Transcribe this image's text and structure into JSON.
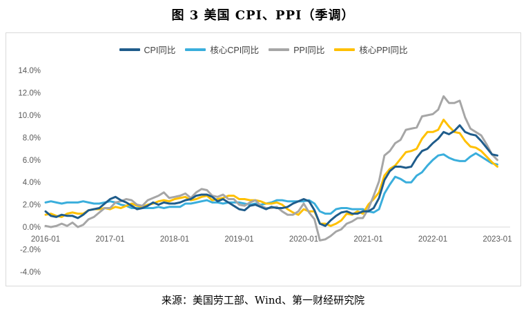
{
  "title": "图 3 美国 CPI、PPI（季调）",
  "source_note": "来源：美国劳工部、Wind、第一财经研究院",
  "colors": {
    "cpi": "#1F5C8B",
    "core_cpi": "#3AAEDC",
    "ppi": "#A6A6A6",
    "core_ppi": "#FFC000",
    "axis_line": "#D9D9D9",
    "tick_text": "#595959",
    "frame_border": "#D9D9D9"
  },
  "chart_data": {
    "type": "line",
    "title": "图 3 美国 CPI、PPI（季调）",
    "xlabel": "",
    "ylabel": "",
    "x_unit": "month",
    "x_range": [
      "2016-01",
      "2023-01"
    ],
    "x_tick_labels": [
      "2016-01",
      "2017-01",
      "2018-01",
      "2019-01",
      "2020-01",
      "2021-01",
      "2022-01",
      "2023-01"
    ],
    "y_ticks": [
      {
        "value": 14,
        "label": "14.0%"
      },
      {
        "value": 12,
        "label": "12.0%"
      },
      {
        "value": 10,
        "label": "10.0%"
      },
      {
        "value": 8,
        "label": "8.0%"
      },
      {
        "value": 6,
        "label": "6.0%"
      },
      {
        "value": 4,
        "label": "4.0%"
      },
      {
        "value": 2,
        "label": "2.0%"
      },
      {
        "value": 0,
        "label": "0.0%"
      },
      {
        "value": -2,
        "label": "-2.0%"
      },
      {
        "value": -4,
        "label": "-4.0%"
      }
    ],
    "ylim": [
      -4,
      14
    ],
    "grid": "zero-baseline-only",
    "legend_position": "top-center",
    "series": [
      {
        "name": "CPI同比",
        "color": "#1F5C8B",
        "z": 4,
        "values": [
          1.4,
          1.0,
          0.9,
          1.1,
          1.0,
          1.0,
          0.8,
          1.1,
          1.5,
          1.6,
          1.7,
          2.1,
          2.5,
          2.7,
          2.4,
          2.2,
          1.9,
          1.6,
          1.7,
          1.9,
          2.2,
          2.0,
          2.2,
          2.1,
          2.1,
          2.2,
          2.4,
          2.5,
          2.8,
          2.9,
          2.9,
          2.7,
          2.3,
          2.5,
          2.2,
          1.9,
          1.6,
          1.5,
          1.9,
          2.0,
          1.8,
          1.6,
          1.8,
          1.7,
          1.7,
          1.8,
          2.1,
          2.3,
          2.5,
          2.3,
          1.5,
          0.3,
          0.1,
          0.6,
          1.0,
          1.3,
          1.4,
          1.2,
          1.2,
          1.4,
          1.4,
          1.7,
          2.6,
          4.2,
          5.0,
          5.4,
          5.4,
          5.3,
          5.4,
          6.2,
          6.8,
          7.0,
          7.5,
          7.9,
          8.5,
          8.3,
          8.6,
          9.1,
          8.5,
          8.3,
          8.2,
          7.7,
          7.1,
          6.5,
          6.4
        ]
      },
      {
        "name": "核心CPI同比",
        "color": "#3AAEDC",
        "z": 1,
        "values": [
          2.2,
          2.3,
          2.2,
          2.1,
          2.2,
          2.2,
          2.2,
          2.3,
          2.2,
          2.1,
          2.1,
          2.2,
          2.3,
          2.2,
          2.0,
          1.9,
          1.7,
          1.7,
          1.7,
          1.7,
          1.7,
          1.8,
          1.7,
          1.8,
          1.8,
          1.8,
          2.1,
          2.1,
          2.2,
          2.3,
          2.4,
          2.2,
          2.2,
          2.1,
          2.2,
          2.2,
          2.2,
          2.1,
          2.0,
          2.1,
          2.0,
          2.1,
          2.2,
          2.4,
          2.4,
          2.3,
          2.3,
          2.3,
          2.3,
          2.4,
          2.1,
          1.4,
          1.2,
          1.2,
          1.6,
          1.7,
          1.7,
          1.6,
          1.6,
          1.6,
          1.4,
          1.3,
          1.6,
          3.0,
          3.8,
          4.5,
          4.3,
          4.0,
          4.0,
          4.6,
          4.9,
          5.5,
          6.0,
          6.4,
          6.5,
          6.2,
          6.0,
          5.9,
          5.9,
          6.3,
          6.6,
          6.3,
          6.0,
          5.7,
          5.6
        ]
      },
      {
        "name": "PPI同比",
        "color": "#A6A6A6",
        "z": 3,
        "values": [
          0.1,
          0.0,
          0.1,
          0.3,
          0.1,
          0.4,
          0.0,
          0.2,
          0.7,
          0.9,
          1.3,
          1.7,
          1.7,
          2.2,
          2.3,
          2.5,
          2.4,
          2.0,
          1.9,
          2.4,
          2.6,
          2.8,
          3.1,
          2.6,
          2.7,
          2.8,
          3.0,
          2.6,
          3.1,
          3.4,
          3.3,
          2.8,
          2.7,
          2.9,
          2.5,
          2.5,
          2.0,
          1.9,
          2.2,
          2.4,
          1.9,
          1.7,
          1.7,
          1.8,
          1.4,
          1.1,
          1.1,
          1.4,
          2.1,
          1.3,
          0.7,
          -1.2,
          -1.1,
          -0.8,
          -0.4,
          -0.2,
          0.3,
          0.5,
          0.8,
          0.8,
          1.6,
          2.8,
          4.1,
          6.4,
          6.8,
          7.5,
          7.8,
          8.7,
          8.8,
          8.9,
          9.9,
          10.0,
          10.1,
          10.5,
          11.7,
          11.1,
          11.1,
          11.3,
          9.8,
          8.8,
          8.5,
          8.2,
          7.4,
          6.5,
          6.0
        ]
      },
      {
        "name": "核心PPI同比",
        "color": "#FFC000",
        "z": 2,
        "values": [
          1.1,
          1.2,
          1.0,
          0.9,
          1.2,
          1.3,
          1.2,
          1.2,
          1.5,
          1.6,
          1.6,
          1.7,
          1.6,
          1.8,
          1.7,
          1.9,
          2.1,
          1.9,
          1.8,
          2.0,
          2.1,
          2.3,
          2.4,
          2.3,
          2.5,
          2.6,
          2.7,
          2.4,
          2.5,
          2.7,
          2.8,
          2.4,
          2.5,
          2.6,
          2.8,
          2.8,
          2.5,
          2.5,
          2.4,
          2.4,
          2.3,
          2.1,
          2.1,
          2.2,
          2.0,
          1.6,
          1.3,
          1.1,
          1.6,
          1.4,
          1.4,
          0.3,
          0.3,
          0.1,
          0.3,
          0.6,
          1.2,
          1.1,
          1.4,
          1.2,
          2.0,
          2.5,
          3.1,
          4.6,
          5.2,
          5.5,
          6.1,
          6.7,
          6.8,
          7.0,
          7.9,
          8.5,
          8.5,
          8.7,
          9.6,
          9.0,
          8.5,
          8.4,
          7.7,
          7.2,
          7.1,
          6.8,
          6.3,
          5.8,
          5.4
        ]
      }
    ]
  }
}
